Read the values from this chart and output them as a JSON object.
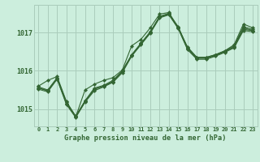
{
  "title": "Graphe pression niveau de la mer (hPa)",
  "bg_color": "#cceedd",
  "grid_color": "#aaccbb",
  "line_color": "#336633",
  "hours": [
    0,
    1,
    2,
    3,
    4,
    5,
    6,
    7,
    8,
    9,
    10,
    11,
    12,
    13,
    14,
    15,
    16,
    17,
    18,
    19,
    20,
    21,
    22,
    23
  ],
  "yticks": [
    1015.0,
    1016.0,
    1017.0
  ],
  "ylim": [
    1014.55,
    1017.72
  ],
  "xlim": [
    -0.5,
    23.5
  ],
  "xtick_labels": [
    "0",
    "1",
    "2",
    "3",
    "4",
    "5",
    "6",
    "7",
    "8",
    "9",
    "10",
    "11",
    "12",
    "13",
    "14",
    "15",
    "16",
    "17",
    "18",
    "19",
    "20",
    "21",
    "22",
    "23"
  ],
  "series": [
    [
      1015.6,
      1015.75,
      1015.85,
      1015.2,
      1014.8,
      1015.5,
      1015.65,
      1015.75,
      1015.82,
      1016.02,
      1016.65,
      1016.82,
      1017.12,
      1017.48,
      1017.52,
      1017.12,
      1016.62,
      1016.35,
      1016.35,
      1016.42,
      1016.52,
      1016.68,
      1017.22,
      1017.12
    ],
    [
      1015.58,
      1015.5,
      1015.82,
      1015.18,
      1014.82,
      1015.22,
      1015.55,
      1015.62,
      1015.75,
      1016.0,
      1016.42,
      1016.72,
      1017.02,
      1017.42,
      1017.5,
      1017.15,
      1016.6,
      1016.35,
      1016.35,
      1016.42,
      1016.52,
      1016.65,
      1017.15,
      1017.08
    ],
    [
      1015.55,
      1015.48,
      1015.8,
      1015.15,
      1014.8,
      1015.2,
      1015.52,
      1015.6,
      1015.72,
      1015.98,
      1016.4,
      1016.7,
      1017.0,
      1017.4,
      1017.48,
      1017.12,
      1016.58,
      1016.33,
      1016.33,
      1016.4,
      1016.5,
      1016.62,
      1017.12,
      1017.05
    ],
    [
      1015.55,
      1015.48,
      1015.8,
      1015.15,
      1014.8,
      1015.2,
      1015.52,
      1015.6,
      1015.72,
      1015.98,
      1016.4,
      1016.7,
      1017.0,
      1017.4,
      1017.48,
      1017.12,
      1016.58,
      1016.33,
      1016.33,
      1016.4,
      1016.5,
      1016.62,
      1017.08,
      1017.05
    ],
    [
      1015.52,
      1015.45,
      1015.78,
      1015.12,
      1014.78,
      1015.18,
      1015.48,
      1015.58,
      1015.7,
      1015.95,
      1016.38,
      1016.68,
      1016.98,
      1017.38,
      1017.46,
      1017.1,
      1016.55,
      1016.3,
      1016.3,
      1016.38,
      1016.48,
      1016.6,
      1017.05,
      1017.02
    ]
  ]
}
